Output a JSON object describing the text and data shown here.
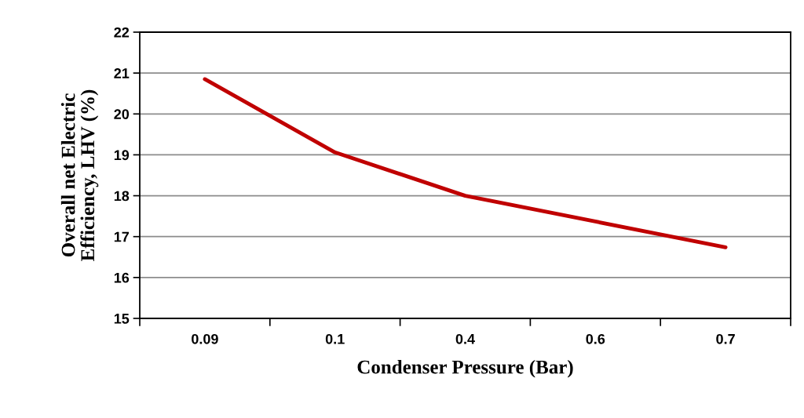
{
  "chart_data": {
    "type": "line",
    "xlabel": "Condenser Pressure (Bar)",
    "ylabel": "Overall net Electric\nEfficiency, LHV (%)",
    "categories": [
      "0.09",
      "0.1",
      "0.4",
      "0.6",
      "0.7"
    ],
    "series": [
      {
        "color": "#c00000",
        "values": [
          20.85,
          19.06,
          18.0,
          17.37,
          16.74
        ]
      }
    ],
    "ylim": [
      15,
      22
    ],
    "yticks": [
      15,
      16,
      17,
      18,
      19,
      20,
      21,
      22
    ],
    "grid": "y",
    "marker": "none",
    "line_style": "solid"
  }
}
